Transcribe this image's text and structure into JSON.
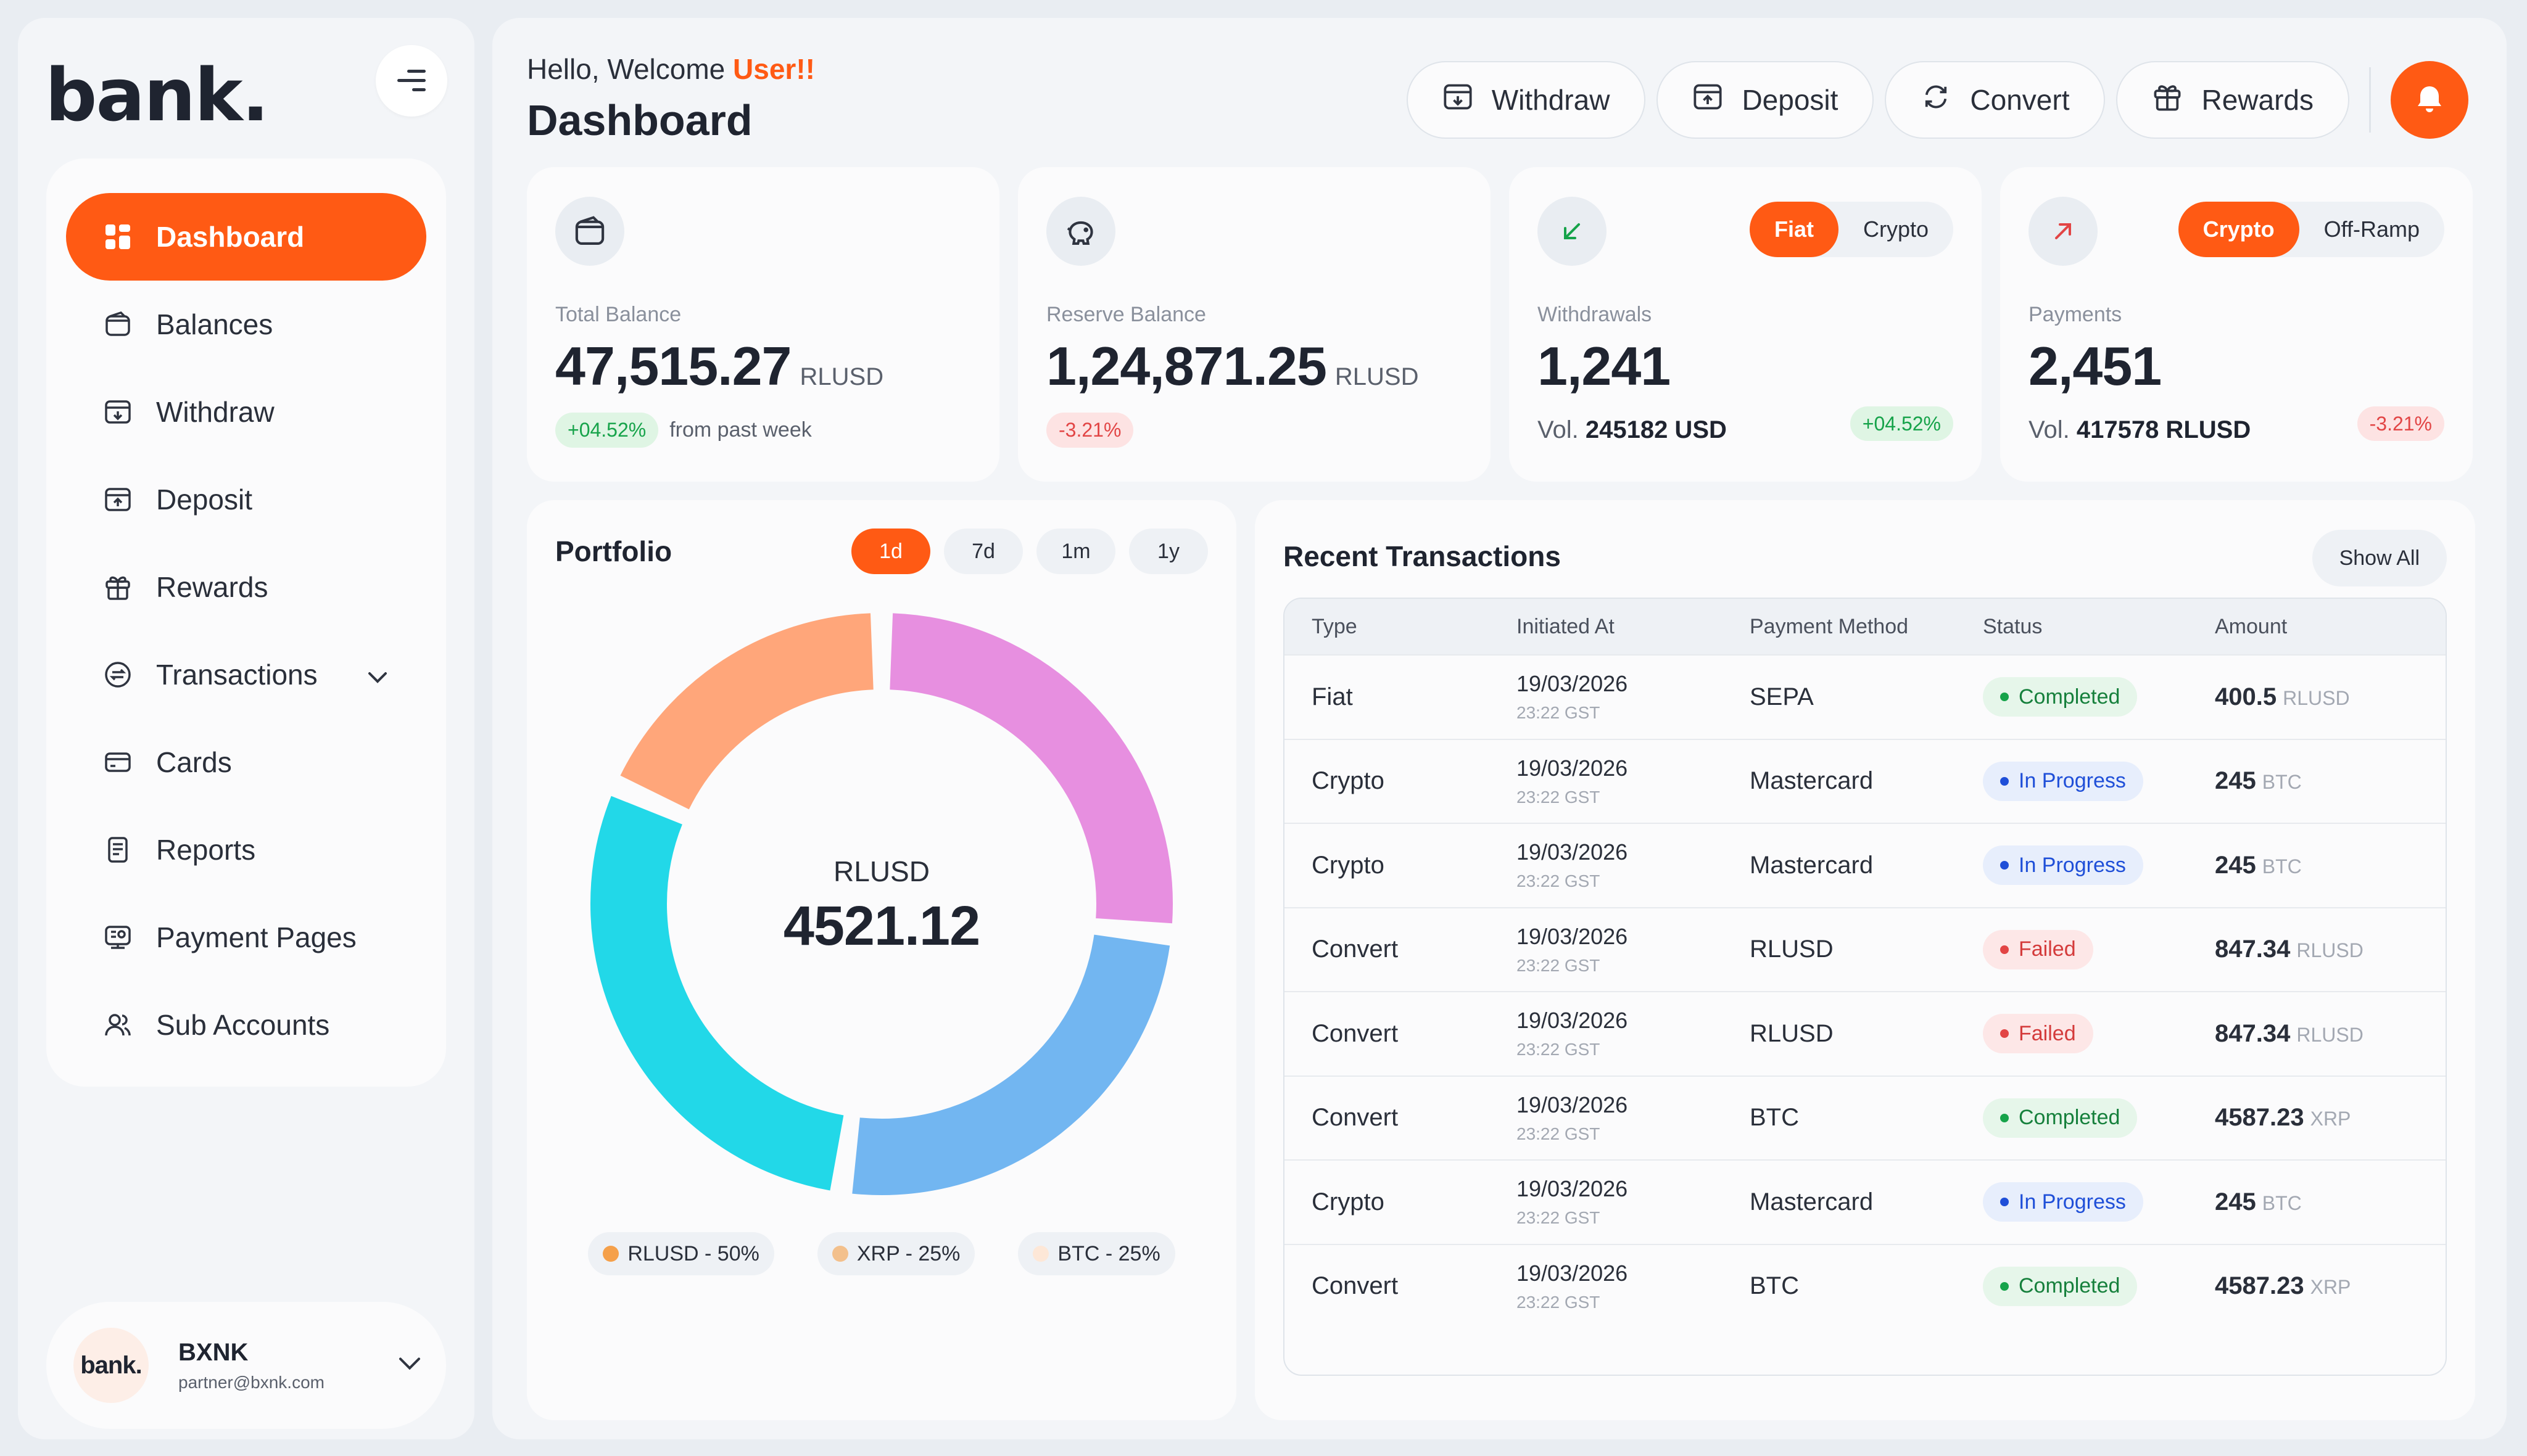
{
  "brand": "bank.",
  "sidebar": {
    "items": [
      {
        "label": "Dashboard",
        "icon": "dashboard-icon",
        "active": true
      },
      {
        "label": "Balances",
        "icon": "wallet-icon"
      },
      {
        "label": "Withdraw",
        "icon": "withdraw-icon"
      },
      {
        "label": "Deposit",
        "icon": "deposit-icon"
      },
      {
        "label": "Rewards",
        "icon": "gift-icon"
      },
      {
        "label": "Transactions",
        "icon": "transactions-icon",
        "has_chevron": true
      },
      {
        "label": "Cards",
        "icon": "card-icon"
      },
      {
        "label": "Reports",
        "icon": "report-icon"
      },
      {
        "label": "Payment Pages",
        "icon": "payment-pages-icon"
      },
      {
        "label": "Sub Accounts",
        "icon": "users-icon"
      }
    ],
    "profile": {
      "logo": "bank.",
      "name": "BXNK",
      "email": "partner@bxnk.com"
    }
  },
  "header": {
    "greeting_prefix": "Hello, Welcome ",
    "greeting_user": "User!!",
    "title": "Dashboard",
    "actions": [
      "Withdraw",
      "Deposit",
      "Convert",
      "Rewards"
    ]
  },
  "stats": {
    "total": {
      "label": "Total Balance",
      "value": "47,515.27",
      "unit": "RLUSD",
      "badge": "+04.52%",
      "foot": "from past week"
    },
    "reserve": {
      "label": "Reserve Balance",
      "value": "1,24,871.25",
      "unit": "RLUSD",
      "badge": "-3.21%"
    },
    "withdrawals": {
      "label": "Withdrawals",
      "value": "1,241",
      "vol_prefix": "Vol.",
      "vol_value": "245182 USD",
      "badge": "+04.52%",
      "toggle": [
        "Fiat",
        "Crypto"
      ]
    },
    "payments": {
      "label": "Payments",
      "value": "2,451",
      "vol_prefix": "Vol.",
      "vol_value": "417578 RLUSD",
      "badge": "-3.21%",
      "toggle": [
        "Crypto",
        "Off-Ramp"
      ]
    }
  },
  "portfolio": {
    "title": "Portfolio",
    "ranges": [
      "1d",
      "7d",
      "1m",
      "1y"
    ],
    "center_label": "RLUSD",
    "center_value": "4521.12",
    "legend": [
      "RLUSD - 50%",
      "XRP - 25%",
      "BTC - 25%"
    ],
    "colors": {
      "pink": "#e78fe0",
      "blue": "#72b6f1",
      "cyan": "#22d8e8",
      "orange": "#ffa67a",
      "legend_rlusd": "#f5a04a",
      "legend_xrp": "#f3c08c",
      "legend_btc": "#fde7d7"
    }
  },
  "transactions": {
    "title": "Recent Transactions",
    "show_all": "Show All",
    "headers": [
      "Type",
      "Initiated At",
      "Payment Method",
      "Status",
      "Amount"
    ],
    "rows": [
      {
        "type": "Fiat",
        "date": "19/03/2026",
        "time": "23:22 GST",
        "method": "SEPA",
        "status": "Completed",
        "status_kind": "completed",
        "amount": "400.5",
        "unit": "RLUSD"
      },
      {
        "type": "Crypto",
        "date": "19/03/2026",
        "time": "23:22 GST",
        "method": "Mastercard",
        "status": "In Progress",
        "status_kind": "progress",
        "amount": "245",
        "unit": "BTC"
      },
      {
        "type": "Crypto",
        "date": "19/03/2026",
        "time": "23:22 GST",
        "method": "Mastercard",
        "status": "In Progress",
        "status_kind": "progress",
        "amount": "245",
        "unit": "BTC"
      },
      {
        "type": "Convert",
        "date": "19/03/2026",
        "time": "23:22 GST",
        "method": "RLUSD",
        "status": "Failed",
        "status_kind": "failed",
        "amount": "847.34",
        "unit": "RLUSD"
      },
      {
        "type": "Convert",
        "date": "19/03/2026",
        "time": "23:22 GST",
        "method": "RLUSD",
        "status": "Failed",
        "status_kind": "failed",
        "amount": "847.34",
        "unit": "RLUSD"
      },
      {
        "type": "Convert",
        "date": "19/03/2026",
        "time": "23:22 GST",
        "method": "BTC",
        "status": "Completed",
        "status_kind": "completed",
        "amount": "4587.23",
        "unit": "XRP"
      },
      {
        "type": "Crypto",
        "date": "19/03/2026",
        "time": "23:22 GST",
        "method": "Mastercard",
        "status": "In Progress",
        "status_kind": "progress",
        "amount": "245",
        "unit": "BTC"
      },
      {
        "type": "Convert",
        "date": "19/03/2026",
        "time": "23:22 GST",
        "method": "BTC",
        "status": "Completed",
        "status_kind": "completed",
        "amount": "4587.23",
        "unit": "XRP"
      }
    ]
  }
}
